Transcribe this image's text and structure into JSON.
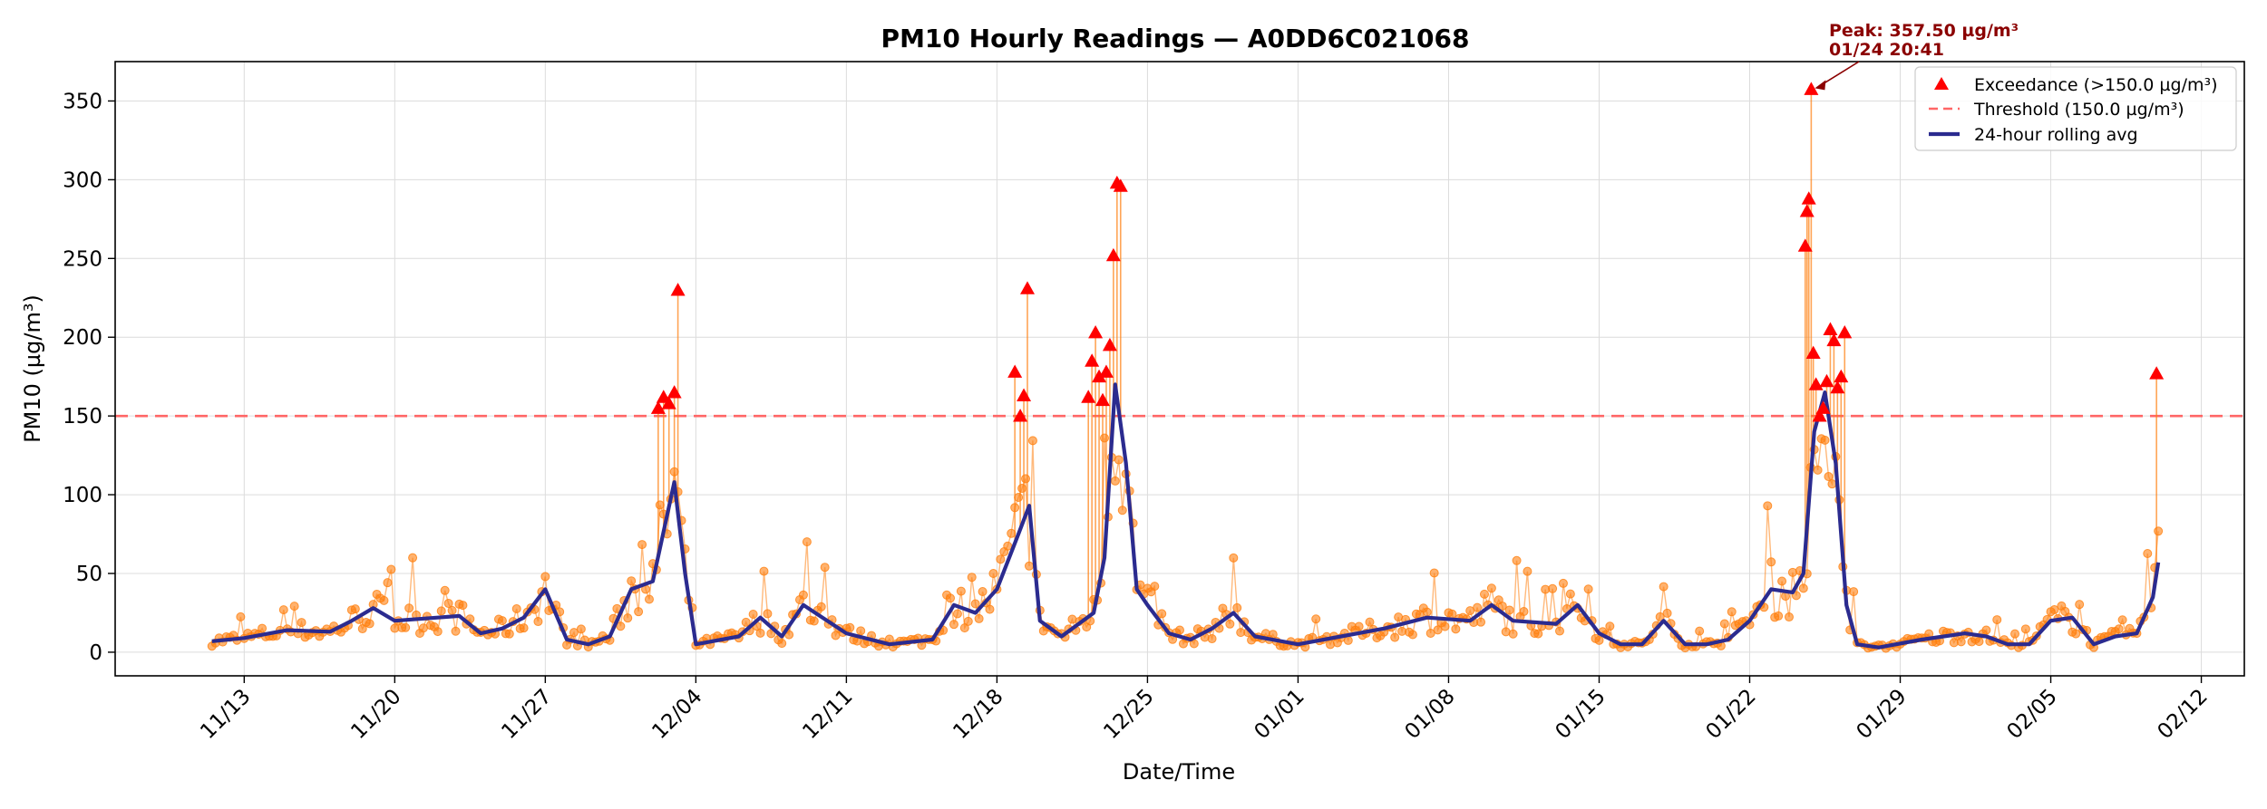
{
  "chart_data": {
    "type": "line",
    "title": "PM10 Hourly Readings — A0DD6C021068",
    "xlabel": "Date/Time",
    "ylabel": "PM10 (µg/m³)",
    "ylim": [
      -15,
      375
    ],
    "xlim": [
      "2023-11-07",
      "2024-02-14"
    ],
    "x_ticks": [
      "11/13",
      "11/20",
      "11/27",
      "12/04",
      "12/11",
      "12/18",
      "12/25",
      "01/01",
      "01/08",
      "01/15",
      "01/22",
      "01/29",
      "02/05",
      "02/12"
    ],
    "x_tick_dates": [
      "2023-11-13",
      "2023-11-20",
      "2023-11-27",
      "2023-12-04",
      "2023-12-11",
      "2023-12-18",
      "2023-12-25",
      "2024-01-01",
      "2024-01-08",
      "2024-01-15",
      "2024-01-22",
      "2024-01-29",
      "2024-02-05",
      "2024-02-12"
    ],
    "y_ticks": [
      0,
      50,
      100,
      150,
      200,
      250,
      300,
      350
    ],
    "grid": true,
    "legend_position": "top-right",
    "threshold": 150.0,
    "colors": {
      "hourly": "#ff7f0e",
      "exceedance": "#ff0000",
      "threshold": "#ff6666",
      "rolling": "#2b2b8f",
      "annotation": "#8b0000"
    },
    "series": [
      {
        "name": "Exceedance (>150.0 µg/m³)",
        "kind": "exceedance",
        "x": [
          "2023-12-02 06:00",
          "2023-12-02 12:00",
          "2023-12-02 18:00",
          "2023-12-03 00:00",
          "2023-12-03 04:00",
          "2023-12-18 20:00",
          "2023-12-19 02:00",
          "2023-12-19 06:00",
          "2023-12-19 10:00",
          "2023-12-22 06:00",
          "2023-12-22 10:00",
          "2023-12-22 14:00",
          "2023-12-22 18:00",
          "2023-12-22 22:00",
          "2023-12-23 02:00",
          "2023-12-23 06:00",
          "2023-12-23 10:00",
          "2023-12-23 14:00",
          "2023-12-23 18:00",
          "2024-01-24 14:00",
          "2024-01-24 16:00",
          "2024-01-24 18:00",
          "2024-01-24 20:41",
          "2024-01-24 23:00",
          "2024-01-25 02:00",
          "2024-01-25 06:00",
          "2024-01-25 10:00",
          "2024-01-25 14:00",
          "2024-01-25 18:00",
          "2024-01-25 22:00",
          "2024-01-26 02:00",
          "2024-01-26 06:00",
          "2024-01-26 10:00",
          "2024-02-09 22:00"
        ],
        "values": [
          155,
          162,
          158,
          165,
          230,
          178,
          150,
          163,
          231,
          162,
          185,
          203,
          175,
          160,
          178,
          195,
          252,
          298,
          296,
          258,
          280,
          288,
          357.5,
          190,
          170,
          150,
          155,
          172,
          205,
          198,
          168,
          175,
          203,
          177
        ]
      },
      {
        "name": "Threshold (150.0 µg/m³)",
        "kind": "threshold",
        "values": [
          150.0
        ]
      },
      {
        "name": "24-hour rolling avg",
        "kind": "rolling",
        "x": [
          "2023-11-11 12:00",
          "2023-11-13",
          "2023-11-15",
          "2023-11-17",
          "2023-11-18",
          "2023-11-19",
          "2023-11-20",
          "2023-11-22",
          "2023-11-23",
          "2023-11-24",
          "2023-11-25",
          "2023-11-26",
          "2023-11-27",
          "2023-11-28",
          "2023-11-29",
          "2023-11-30",
          "2023-12-01",
          "2023-12-02",
          "2023-12-03",
          "2023-12-03 12:00",
          "2023-12-04",
          "2023-12-06",
          "2023-12-07",
          "2023-12-08",
          "2023-12-09",
          "2023-12-11",
          "2023-12-13",
          "2023-12-15",
          "2023-12-16",
          "2023-12-17",
          "2023-12-18",
          "2023-12-19",
          "2023-12-19 12:00",
          "2023-12-20",
          "2023-12-21",
          "2023-12-22",
          "2023-12-22 12:00",
          "2023-12-23",
          "2023-12-23 12:00",
          "2023-12-24",
          "2023-12-24 12:00",
          "2023-12-25",
          "2023-12-26",
          "2023-12-27",
          "2023-12-28",
          "2023-12-29",
          "2023-12-30",
          "2024-01-01",
          "2024-01-03",
          "2024-01-05",
          "2024-01-07",
          "2024-01-09",
          "2024-01-10",
          "2024-01-11",
          "2024-01-13",
          "2024-01-14",
          "2024-01-15",
          "2024-01-16",
          "2024-01-17",
          "2024-01-18",
          "2024-01-19",
          "2024-01-20",
          "2024-01-21",
          "2024-01-22",
          "2024-01-23",
          "2024-01-24",
          "2024-01-24 12:00",
          "2024-01-25",
          "2024-01-25 12:00",
          "2024-01-26",
          "2024-01-26 12:00",
          "2024-01-27",
          "2024-01-28",
          "2024-01-30",
          "2024-02-01",
          "2024-02-02",
          "2024-02-03",
          "2024-02-04",
          "2024-02-05",
          "2024-02-06",
          "2024-02-07",
          "2024-02-08",
          "2024-02-09",
          "2024-02-09 18:00",
          "2024-02-10"
        ],
        "values": [
          7,
          9,
          14,
          13,
          20,
          28,
          20,
          22,
          23,
          12,
          15,
          22,
          40,
          8,
          5,
          10,
          40,
          45,
          108,
          50,
          5,
          10,
          22,
          10,
          30,
          12,
          5,
          8,
          30,
          25,
          40,
          75,
          93,
          20,
          10,
          20,
          25,
          60,
          170,
          120,
          40,
          30,
          12,
          8,
          15,
          25,
          10,
          5,
          10,
          15,
          22,
          20,
          30,
          20,
          18,
          30,
          12,
          5,
          5,
          20,
          5,
          5,
          8,
          20,
          40,
          38,
          50,
          140,
          165,
          120,
          30,
          5,
          3,
          8,
          12,
          10,
          5,
          5,
          20,
          22,
          5,
          10,
          12,
          35,
          57
        ]
      }
    ],
    "annotation": {
      "line1": "Peak: 357.50 µg/m³",
      "line2": "01/24 20:41",
      "x": "2024-01-24 20:41",
      "y": 357.5
    }
  }
}
